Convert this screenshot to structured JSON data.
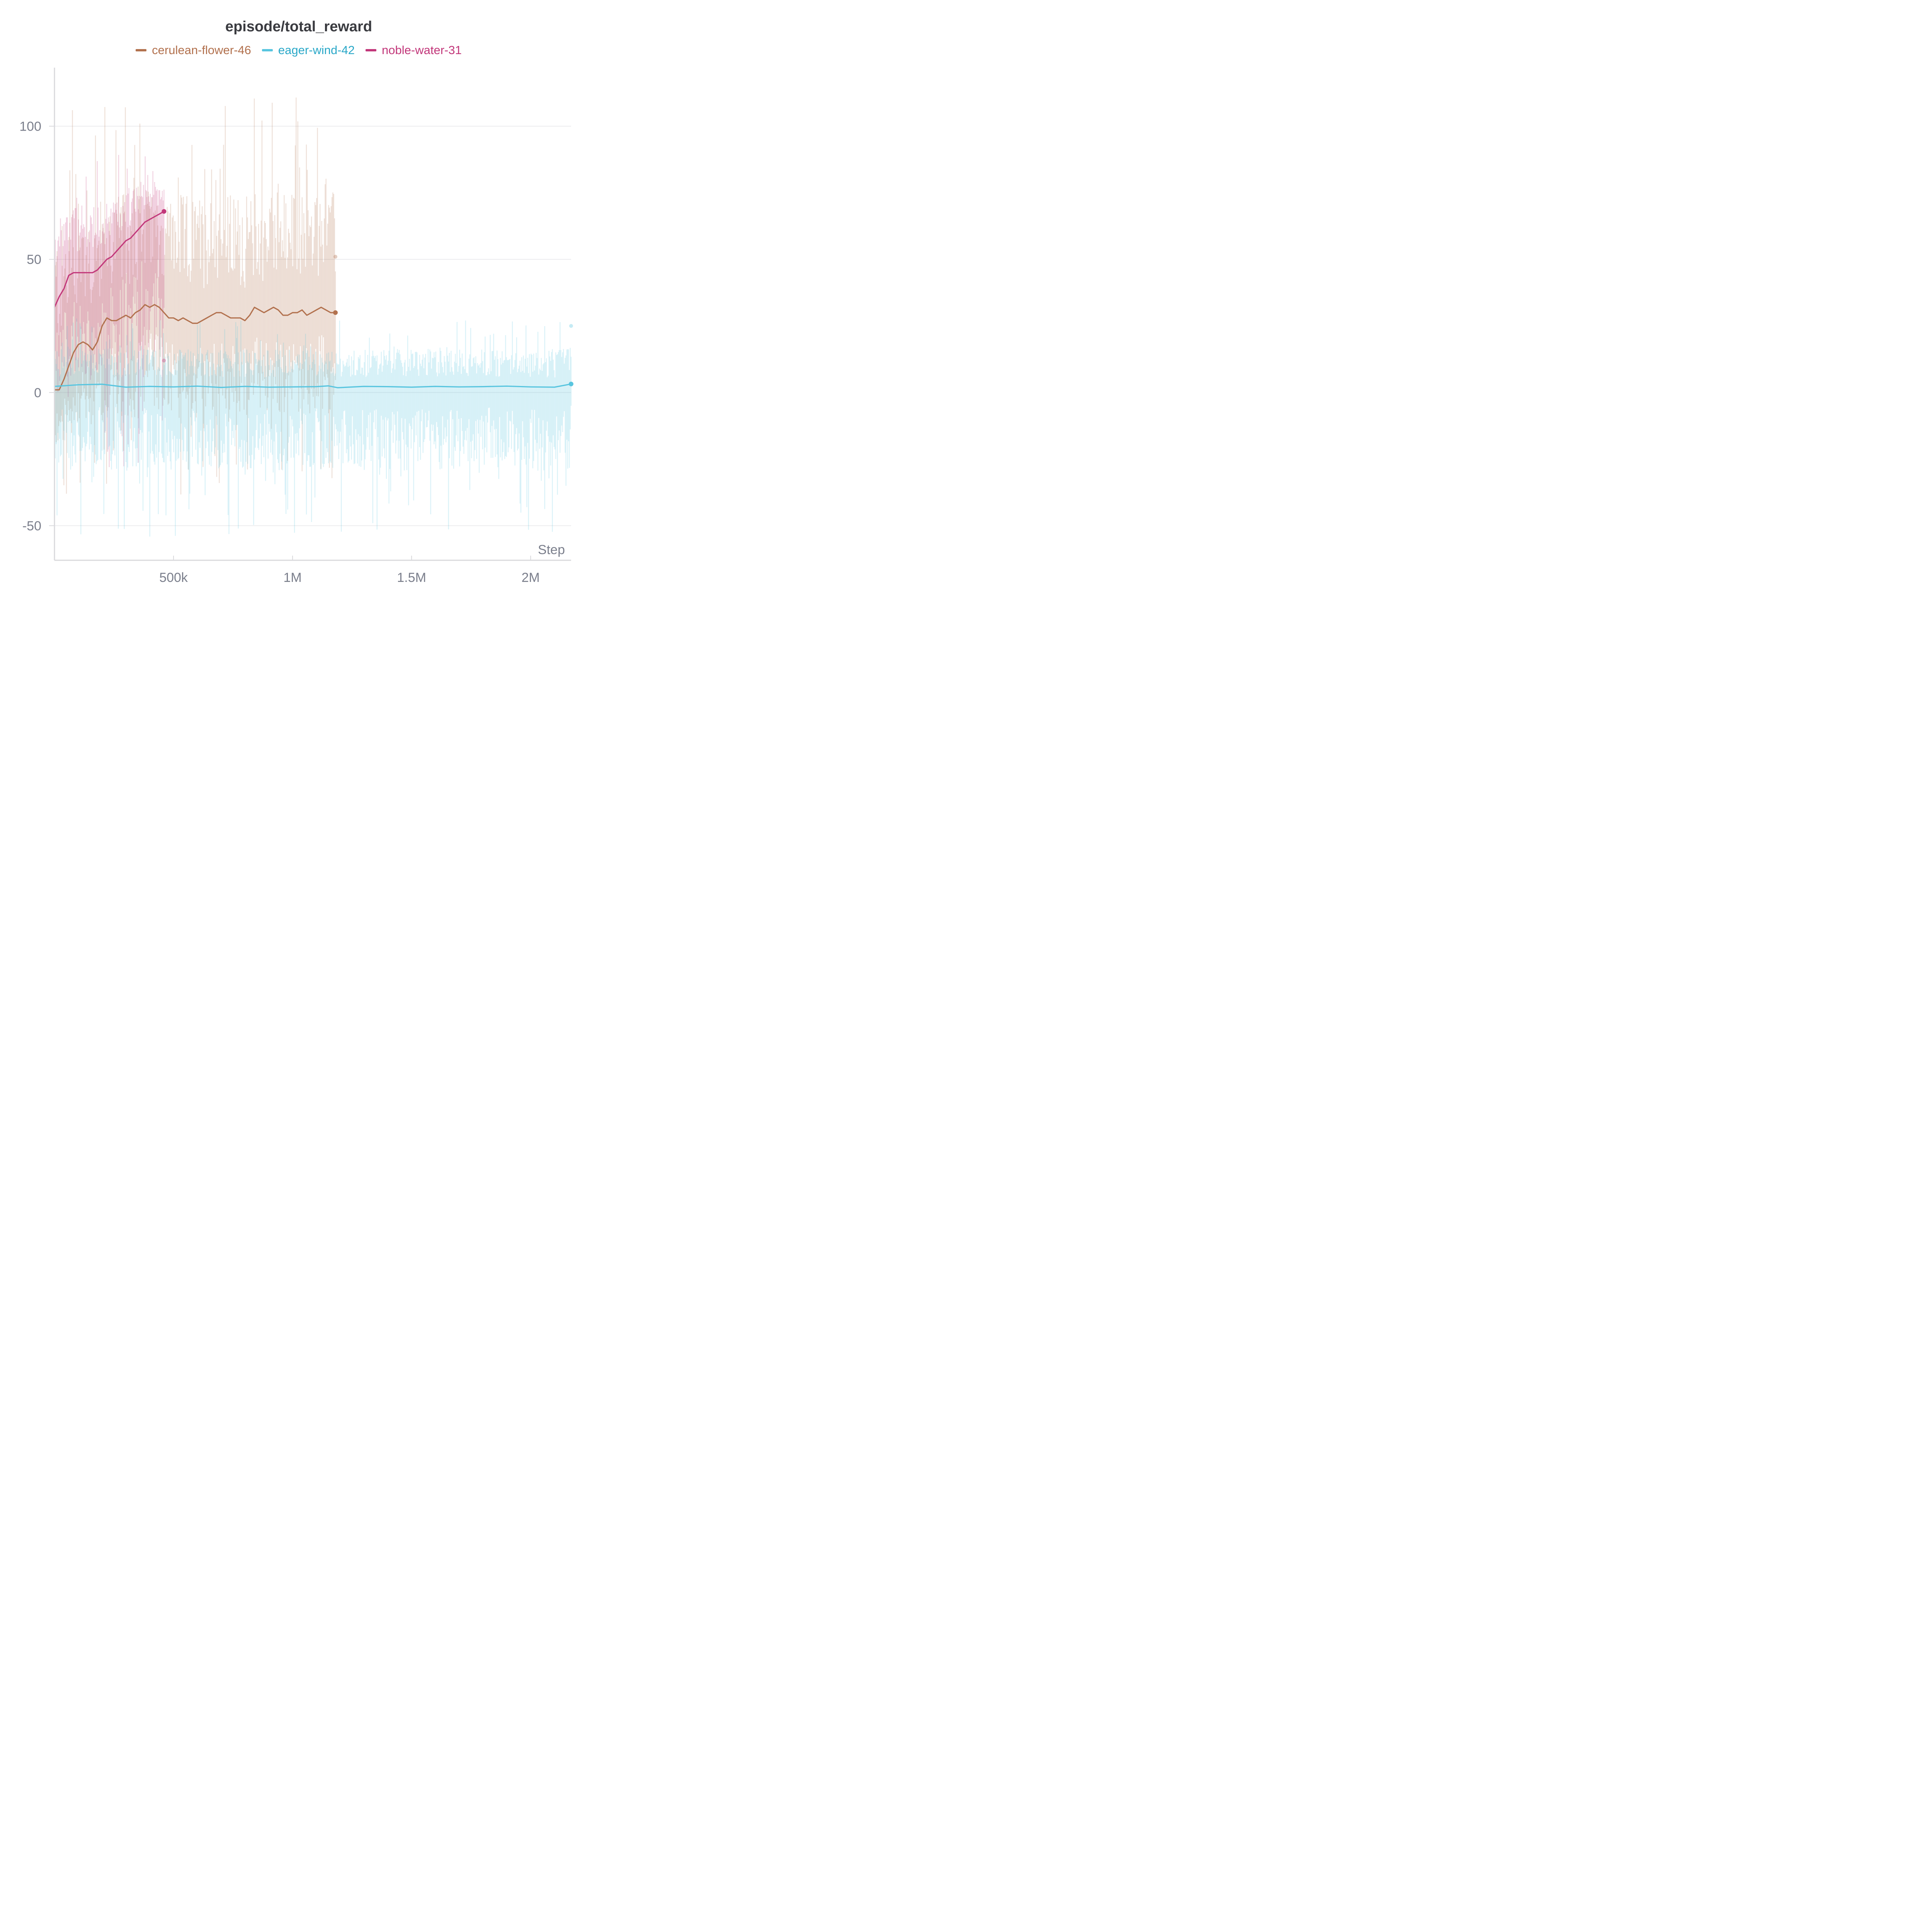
{
  "chart_data": {
    "type": "line",
    "title": "episode/total_reward",
    "xlabel": "Step",
    "ylabel": "",
    "xlim": [
      0,
      2170000
    ],
    "ylim": [
      -63,
      122
    ],
    "x_ticks": [
      {
        "value": 500000,
        "label": "500k"
      },
      {
        "value": 1000000,
        "label": "1M"
      },
      {
        "value": 1500000,
        "label": "1.5M"
      },
      {
        "value": 2000000,
        "label": "2M"
      }
    ],
    "y_ticks": [
      {
        "value": -50,
        "label": "-50"
      },
      {
        "value": 0,
        "label": "0"
      },
      {
        "value": 50,
        "label": "50"
      },
      {
        "value": 100,
        "label": "100"
      }
    ],
    "grid": true,
    "legend_position": "top-center",
    "series": [
      {
        "name": "cerulean-flower-46",
        "color": "#b2714e",
        "x": [
          0,
          20000,
          40000,
          60000,
          80000,
          100000,
          120000,
          140000,
          160000,
          180000,
          200000,
          220000,
          240000,
          260000,
          280000,
          300000,
          320000,
          340000,
          360000,
          380000,
          400000,
          420000,
          440000,
          460000,
          480000,
          500000,
          520000,
          540000,
          560000,
          580000,
          600000,
          620000,
          640000,
          660000,
          680000,
          700000,
          720000,
          740000,
          760000,
          780000,
          800000,
          820000,
          840000,
          860000,
          880000,
          900000,
          920000,
          940000,
          960000,
          980000,
          1000000,
          1020000,
          1040000,
          1060000,
          1080000,
          1100000,
          1120000,
          1140000,
          1160000,
          1180000
        ],
        "values": [
          1,
          1,
          5,
          10,
          15,
          18,
          19,
          18,
          16,
          19,
          25,
          28,
          27,
          27,
          28,
          29,
          28,
          30,
          31,
          33,
          32,
          33,
          32,
          30,
          28,
          28,
          27,
          28,
          27,
          26,
          26,
          27,
          28,
          29,
          30,
          30,
          29,
          28,
          28,
          28,
          27,
          29,
          32,
          31,
          30,
          31,
          32,
          31,
          29,
          29,
          30,
          30,
          31,
          29,
          30,
          31,
          32,
          31,
          30,
          30
        ],
        "raw_range": [
          -40,
          113
        ]
      },
      {
        "name": "eager-wind-42",
        "color": "#58c5df",
        "x": [
          0,
          100000,
          200000,
          300000,
          400000,
          500000,
          600000,
          700000,
          800000,
          900000,
          1000000,
          1100000,
          1150000,
          1190000,
          1300000,
          1400000,
          1500000,
          1600000,
          1700000,
          1800000,
          1900000,
          2000000,
          2100000,
          2170000
        ],
        "values": [
          2.3,
          2.9,
          3.1,
          2.0,
          2.3,
          2.1,
          2.4,
          1.9,
          2.3,
          2.0,
          2.1,
          2.2,
          2.5,
          1.8,
          2.3,
          2.2,
          2.0,
          2.3,
          2.1,
          2.2,
          2.4,
          2.1,
          2.0,
          3.2
        ],
        "raw_range": [
          -55,
          28
        ]
      },
      {
        "name": "noble-water-31",
        "color": "#c2377a",
        "x": [
          0,
          20000,
          40000,
          60000,
          80000,
          100000,
          120000,
          140000,
          160000,
          180000,
          200000,
          220000,
          240000,
          260000,
          280000,
          300000,
          320000,
          340000,
          360000,
          380000,
          400000,
          420000,
          440000,
          460000
        ],
        "values": [
          32,
          36,
          39,
          44,
          45,
          45,
          45,
          45,
          45,
          46,
          48,
          50,
          51,
          53,
          55,
          57,
          58,
          60,
          62,
          64,
          65,
          66,
          67,
          68
        ],
        "raw_range": [
          -30,
          91
        ]
      }
    ],
    "endpoint_markers": [
      {
        "series": "cerulean-flower-46",
        "x": 1180000,
        "y": 30
      },
      {
        "series": "cerulean-flower-46",
        "x": 1180000,
        "y": 51
      },
      {
        "series": "eager-wind-42",
        "x": 2170000,
        "y": 3.2
      },
      {
        "series": "eager-wind-42",
        "x": 2170000,
        "y": 25
      },
      {
        "series": "noble-water-31",
        "x": 460000,
        "y": 68
      },
      {
        "series": "noble-water-31",
        "x": 460000,
        "y": 12
      }
    ]
  }
}
